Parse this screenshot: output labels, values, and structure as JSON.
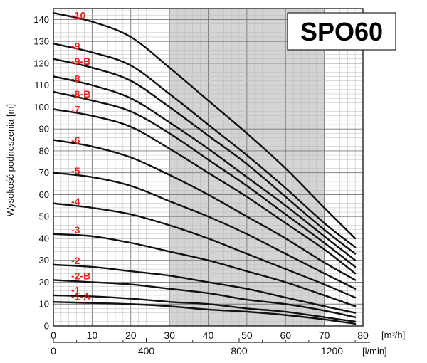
{
  "chart_data": {
    "type": "line",
    "title": "SPO60",
    "ylabel": "Wysokość podnoszenia [m]",
    "xunit": "[m³/h]",
    "x2unit": "[l/min]",
    "xlim": [
      0,
      80
    ],
    "ylim": [
      0,
      145
    ],
    "xticks": [
      "0",
      "10",
      "20",
      "30",
      "40",
      "50",
      "60",
      "70",
      "80"
    ],
    "x2ticks": [
      "0",
      "400",
      "800",
      "1200"
    ],
    "x2tick_values_lpm": [
      0,
      400,
      800,
      1200
    ],
    "yticks": [
      "0",
      "10",
      "20",
      "30",
      "40",
      "50",
      "60",
      "70",
      "80",
      "90",
      "100",
      "110",
      "120",
      "130",
      "140"
    ],
    "highlight_band": [
      30,
      70
    ],
    "grid": true,
    "x": [
      0,
      10,
      20,
      30,
      40,
      50,
      60,
      70,
      78
    ],
    "series": [
      {
        "name": "-10",
        "values": [
          143,
          139,
          132,
          118,
          103,
          88,
          72,
          54,
          40
        ]
      },
      {
        "name": "-9",
        "values": [
          129,
          125,
          119,
          106,
          92,
          78,
          63,
          47,
          36
        ]
      },
      {
        "name": "-9-B",
        "values": [
          122,
          118,
          112,
          100,
          87,
          74,
          59,
          44,
          33
        ]
      },
      {
        "name": "-8",
        "values": [
          114,
          110,
          104,
          93,
          81,
          68,
          55,
          41,
          30
        ]
      },
      {
        "name": "-8-B",
        "values": [
          107,
          103,
          98,
          88,
          76,
          64,
          51,
          38,
          27
        ]
      },
      {
        "name": "-7",
        "values": [
          99,
          96,
          91,
          81,
          70,
          59,
          47,
          35,
          24
        ]
      },
      {
        "name": "-6",
        "values": [
          85,
          82,
          77,
          69,
          60,
          50,
          40,
          29,
          21
        ]
      },
      {
        "name": "-5",
        "values": [
          70,
          68,
          64,
          57,
          50,
          42,
          33,
          24,
          17
        ]
      },
      {
        "name": "-4",
        "values": [
          56,
          54,
          51,
          46,
          40,
          33,
          26,
          19,
          13
        ]
      },
      {
        "name": "-3",
        "values": [
          42,
          41,
          38,
          34,
          30,
          25,
          20,
          14,
          9
        ]
      },
      {
        "name": "-2",
        "values": [
          28,
          27,
          25,
          23,
          20,
          17,
          13,
          9,
          6
        ]
      },
      {
        "name": "-2-B",
        "values": [
          21,
          20,
          19,
          17,
          15,
          12,
          10,
          7,
          4
        ]
      },
      {
        "name": "-1",
        "values": [
          14,
          13.5,
          12.5,
          11,
          10,
          8,
          6.5,
          4,
          2
        ]
      },
      {
        "name": "-1-A",
        "values": [
          11,
          10.5,
          10,
          9,
          7.5,
          6.5,
          5,
          3,
          1
        ]
      }
    ]
  }
}
